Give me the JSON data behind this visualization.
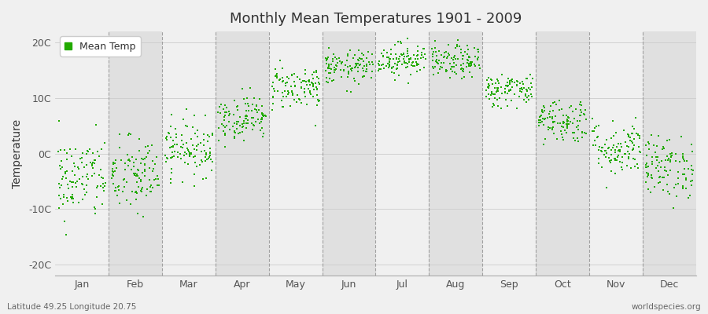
{
  "title": "Monthly Mean Temperatures 1901 - 2009",
  "ylabel": "Temperature",
  "xlabel_labels": [
    "Jan",
    "Feb",
    "Mar",
    "Apr",
    "May",
    "Jun",
    "Jul",
    "Aug",
    "Sep",
    "Oct",
    "Nov",
    "Dec"
  ],
  "ytick_labels": [
    "-20C",
    "-10C",
    "0C",
    "10C",
    "20C"
  ],
  "ytick_values": [
    -20,
    -10,
    0,
    10,
    20
  ],
  "ylim": [
    -22,
    22
  ],
  "fig_bg_color": "#f0f0f0",
  "plot_bg_color": "#ffffff",
  "band_color_light": "#f0f0f0",
  "band_color_dark": "#e0e0e0",
  "dot_color": "#22aa00",
  "legend_label": "Mean Temp",
  "footnote_left": "Latitude 49.25 Longitude 20.75",
  "footnote_right": "worldspecies.org",
  "monthly_means": [
    -4.5,
    -4.0,
    1.0,
    6.5,
    12.0,
    15.5,
    17.0,
    16.5,
    11.5,
    6.0,
    1.0,
    -2.5
  ],
  "monthly_stds": [
    3.8,
    3.5,
    2.5,
    2.0,
    2.0,
    1.5,
    1.5,
    1.5,
    1.5,
    2.0,
    2.5,
    2.8
  ],
  "n_years": 109,
  "random_seed": 42
}
